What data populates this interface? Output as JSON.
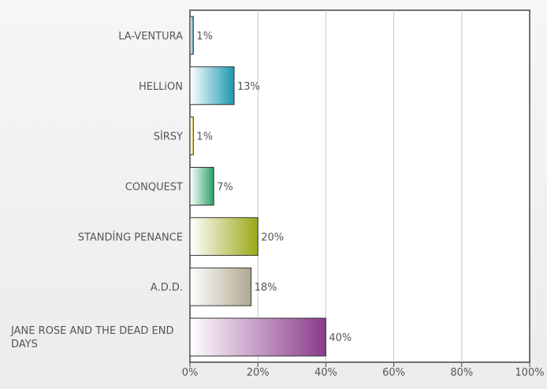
{
  "chart_data": {
    "type": "bar",
    "orientation": "horizontal",
    "categories": [
      "LA-VENTURA",
      "HELLiON",
      "SİRSY",
      "CONQUEST",
      "STANDİNG PENANCE",
      "A.D.D.",
      "JANE ROSE AND THE DEAD END DAYS"
    ],
    "values": [
      1,
      13,
      1,
      7,
      20,
      18,
      40
    ],
    "value_labels": [
      "1%",
      "13%",
      "1%",
      "7%",
      "20%",
      "18%",
      "40%"
    ],
    "xlim": [
      0,
      100
    ],
    "xticks": [
      "0%",
      "20%",
      "40%",
      "60%",
      "80%",
      "100%"
    ],
    "grid": true,
    "legend": "none",
    "bar_colors": [
      "#4a9fbf",
      "#1a98b0",
      "#f0e070",
      "#2aa068",
      "#9aa818",
      "#b0a890",
      "#8a3a8a"
    ]
  }
}
